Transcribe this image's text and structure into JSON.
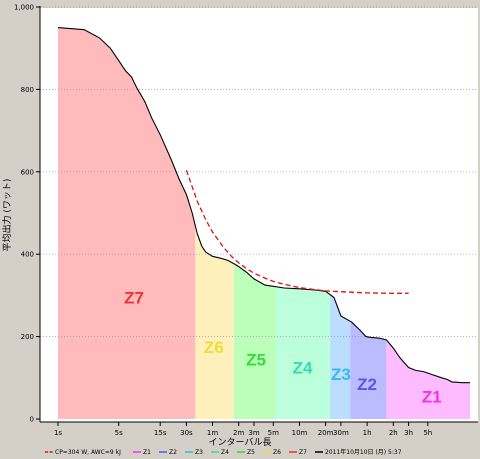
{
  "chart_data": {
    "type": "area",
    "title": "",
    "xlabel": "インターバル長",
    "ylabel": "平均出力 (ワット)",
    "x_scale": "log",
    "ylim": [
      0,
      1000
    ],
    "y_ticks": [
      {
        "value": 0,
        "label": "0"
      },
      {
        "value": 200,
        "label": "200"
      },
      {
        "value": 400,
        "label": "400"
      },
      {
        "value": 600,
        "label": "600"
      },
      {
        "value": 800,
        "label": "800"
      },
      {
        "value": 1000,
        "label": "1,000"
      }
    ],
    "x_ticks": [
      {
        "seconds": 1,
        "label": "1s"
      },
      {
        "seconds": 5,
        "label": "5s"
      },
      {
        "seconds": 15,
        "label": "15s"
      },
      {
        "seconds": 30,
        "label": "30s"
      },
      {
        "seconds": 60,
        "label": "1m"
      },
      {
        "seconds": 120,
        "label": "2m"
      },
      {
        "seconds": 180,
        "label": "3m"
      },
      {
        "seconds": 300,
        "label": "5m"
      },
      {
        "seconds": 600,
        "label": "10m"
      },
      {
        "seconds": 1200,
        "label": "20m"
      },
      {
        "seconds": 1800,
        "label": "30m"
      },
      {
        "seconds": 3600,
        "label": "1h"
      },
      {
        "seconds": 7200,
        "label": "2h"
      },
      {
        "seconds": 10800,
        "label": "3h"
      },
      {
        "seconds": 18000,
        "label": "5h"
      }
    ],
    "grid": true,
    "series": [
      {
        "name": "2011年10月10日 (月) 5:37",
        "color": "#000000",
        "points": [
          [
            1,
            950
          ],
          [
            2,
            945
          ],
          [
            3,
            925
          ],
          [
            4,
            900
          ],
          [
            5,
            870
          ],
          [
            6,
            845
          ],
          [
            7,
            830
          ],
          [
            8,
            805
          ],
          [
            10,
            770
          ],
          [
            12,
            730
          ],
          [
            15,
            690
          ],
          [
            20,
            630
          ],
          [
            25,
            580
          ],
          [
            30,
            545
          ],
          [
            35,
            500
          ],
          [
            40,
            450
          ],
          [
            45,
            420
          ],
          [
            50,
            405
          ],
          [
            60,
            395
          ],
          [
            75,
            390
          ],
          [
            90,
            385
          ],
          [
            110,
            375
          ],
          [
            120,
            370
          ],
          [
            150,
            355
          ],
          [
            180,
            340
          ],
          [
            240,
            325
          ],
          [
            300,
            322
          ],
          [
            400,
            318
          ],
          [
            600,
            316
          ],
          [
            900,
            313
          ],
          [
            1200,
            310
          ],
          [
            1500,
            295
          ],
          [
            1800,
            250
          ],
          [
            2400,
            235
          ],
          [
            3000,
            215
          ],
          [
            3500,
            200
          ],
          [
            4000,
            198
          ],
          [
            5000,
            196
          ],
          [
            6000,
            192
          ],
          [
            7200,
            172
          ],
          [
            8500,
            150
          ],
          [
            9500,
            138
          ],
          [
            10800,
            125
          ],
          [
            13000,
            118
          ],
          [
            16000,
            115
          ],
          [
            20000,
            108
          ],
          [
            26000,
            100
          ],
          [
            30000,
            96
          ],
          [
            34000,
            90
          ],
          [
            45000,
            88
          ],
          [
            55000,
            88
          ]
        ]
      },
      {
        "name": "CP=304 W, AWC=9 kJ",
        "color": "#dd1111",
        "style": "dashed",
        "points": [
          [
            30,
            604
          ],
          [
            40,
            529
          ],
          [
            50,
            484
          ],
          [
            60,
            454
          ],
          [
            80,
            417
          ],
          [
            100,
            394
          ],
          [
            120,
            379
          ],
          [
            150,
            364
          ],
          [
            180,
            354
          ],
          [
            240,
            342
          ],
          [
            300,
            334
          ],
          [
            400,
            327
          ],
          [
            600,
            319
          ],
          [
            900,
            314
          ],
          [
            1200,
            311
          ],
          [
            1800,
            309
          ],
          [
            3600,
            306
          ],
          [
            7200,
            305
          ],
          [
            10800,
            305
          ]
        ]
      }
    ],
    "zones": [
      {
        "name": "Z7",
        "label": "Z7",
        "from": 1,
        "to": 38,
        "color": "#ffbbbb",
        "text_color": "#ee3333",
        "label_x": 7.5,
        "label_y": 280
      },
      {
        "name": "Z6",
        "label": "Z6",
        "from": 38,
        "to": 105,
        "color": "#fff0bb",
        "text_color": "#f0dd33",
        "label_x": 62,
        "label_y": 160
      },
      {
        "name": "Z5",
        "label": "Z5",
        "from": 105,
        "to": 320,
        "color": "#bbffbb",
        "text_color": "#33dd33",
        "label_x": 190,
        "label_y": 130
      },
      {
        "name": "Z4",
        "label": "Z4",
        "from": 320,
        "to": 1350,
        "color": "#bbffdd",
        "text_color": "#33ddaa",
        "label_x": 650,
        "label_y": 110
      },
      {
        "name": "Z3",
        "label": "Z3",
        "from": 1350,
        "to": 2300,
        "color": "#bbddff",
        "text_color": "#33bbee",
        "label_x": 1800,
        "label_y": 95
      },
      {
        "name": "Z2",
        "label": "Z2",
        "from": 2300,
        "to": 6000,
        "color": "#bbbbff",
        "text_color": "#5555ee",
        "label_x": 3600,
        "label_y": 70
      },
      {
        "name": "Z1",
        "label": "Z1",
        "from": 6000,
        "to": 55000,
        "color": "#ffbbff",
        "text_color": "#ee33ee",
        "label_x": 20000,
        "label_y": 40
      }
    ],
    "legend": {
      "position": "bottom",
      "items": [
        {
          "name": "cp-line",
          "label": "CP=304 W, AWC=9 kJ",
          "color": "#dd1111"
        },
        {
          "name": "z1",
          "label": "Z1",
          "color": "#ee33ee"
        },
        {
          "name": "z2",
          "label": "Z2",
          "color": "#5555ee"
        },
        {
          "name": "z3",
          "label": "Z3",
          "color": "#33bbee"
        },
        {
          "name": "z4",
          "label": "Z4",
          "color": "#33ddaa"
        },
        {
          "name": "z5",
          "label": "Z5",
          "color": "#33dd33"
        },
        {
          "name": "z6",
          "label": "Z6",
          "color": "#f0dd33"
        },
        {
          "name": "z7",
          "label": "Z7",
          "color": "#ee3333"
        },
        {
          "name": "ride",
          "label": "2011年10月10日 (月) 5:37",
          "color": "#000000"
        }
      ]
    }
  }
}
